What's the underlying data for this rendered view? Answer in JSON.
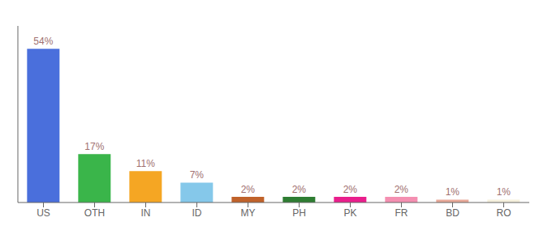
{
  "chart_data": {
    "type": "bar",
    "categories": [
      "US",
      "OTH",
      "IN",
      "ID",
      "MY",
      "PH",
      "PK",
      "FR",
      "BD",
      "RO"
    ],
    "values": [
      54,
      17,
      11,
      7,
      2,
      2,
      2,
      2,
      1,
      1
    ],
    "value_labels": [
      "54%",
      "17%",
      "11%",
      "7%",
      "2%",
      "2%",
      "2%",
      "2%",
      "1%",
      "1%"
    ],
    "data_labels": true,
    "colors": [
      "#4a6fdc",
      "#3ab54a",
      "#f5a623",
      "#85c8ea",
      "#c0622a",
      "#2e7d32",
      "#e91e8c",
      "#f48fb1",
      "#e8a898",
      "#f5f0dc"
    ],
    "ylim": [
      0,
      62
    ],
    "tick_labels": "x",
    "grid": false
  }
}
